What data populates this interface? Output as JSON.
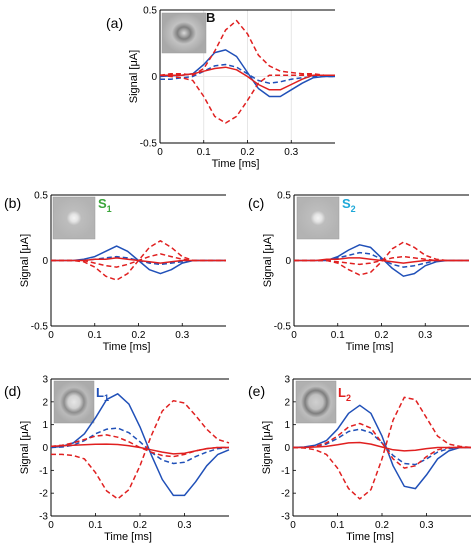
{
  "chart_data": [
    {
      "type": "line",
      "panel_label": "(a)",
      "inset_label": "B",
      "inset_label_color": "#111111",
      "xlabel": "Time [ms]",
      "ylabel": "Signal [μA]",
      "xlim": [
        0,
        0.4
      ],
      "ylim": [
        -0.5,
        0.5
      ],
      "xticks": [
        "0",
        "0.1",
        "0.2",
        "0.3"
      ],
      "yticks": [
        "-0.5",
        "0",
        "0.5"
      ],
      "grid": true,
      "x": [
        0,
        0.025,
        0.05,
        0.075,
        0.1,
        0.125,
        0.15,
        0.175,
        0.2,
        0.225,
        0.25,
        0.275,
        0.3,
        0.325,
        0.35,
        0.375,
        0.4
      ],
      "series": [
        {
          "color": "#2050b8",
          "style": "solid",
          "values": [
            0,
            0.005,
            0.01,
            0.02,
            0.09,
            0.18,
            0.2,
            0.15,
            0.03,
            -0.09,
            -0.15,
            -0.15,
            -0.1,
            -0.05,
            -0.01,
            0,
            0
          ]
        },
        {
          "color": "#2050b8",
          "style": "dashed",
          "values": [
            -0.02,
            -0.02,
            -0.01,
            0,
            0.04,
            0.08,
            0.09,
            0.07,
            0.02,
            -0.03,
            -0.05,
            -0.04,
            -0.02,
            -0.01,
            0,
            0,
            0
          ]
        },
        {
          "color": "#e02020",
          "style": "solid",
          "values": [
            0.01,
            0.01,
            0.01,
            0.02,
            0.04,
            0.06,
            0.07,
            0.05,
            0,
            -0.06,
            -0.1,
            -0.1,
            -0.06,
            -0.02,
            0.01,
            0.01,
            0.01
          ]
        },
        {
          "color": "#e02020",
          "style": "dashed",
          "values": [
            0.01,
            0.02,
            0.02,
            0.01,
            0.06,
            0.19,
            0.35,
            0.42,
            0.32,
            0.16,
            0.08,
            0.04,
            0.03,
            0.02,
            0.02,
            0.01,
            0.01
          ]
        },
        {
          "color": "#e02020",
          "style": "dashed",
          "values": [
            0.01,
            0,
            -0.01,
            -0.03,
            -0.15,
            -0.3,
            -0.35,
            -0.3,
            -0.18,
            -0.05,
            0.01,
            0.01,
            0.01,
            0.01,
            0.01,
            0.01,
            0.01
          ]
        }
      ]
    },
    {
      "type": "line",
      "panel_label": "(b)",
      "inset_label": "S",
      "inset_sub": "1",
      "inset_label_color": "#3aa63a",
      "xlabel": "Time [ms]",
      "ylabel": "Signal [μA]",
      "xlim": [
        0,
        0.4
      ],
      "ylim": [
        -0.5,
        0.5
      ],
      "xticks": [
        "0",
        "0.1",
        "0.2",
        "0.3"
      ],
      "yticks": [
        "-0.5",
        "0",
        "0.5"
      ],
      "grid": false,
      "x": [
        0,
        0.025,
        0.05,
        0.075,
        0.1,
        0.125,
        0.15,
        0.175,
        0.2,
        0.225,
        0.25,
        0.275,
        0.3,
        0.325,
        0.35,
        0.375,
        0.4
      ],
      "series": [
        {
          "color": "#2050b8",
          "style": "solid",
          "values": [
            0,
            0,
            0,
            0.01,
            0.03,
            0.07,
            0.11,
            0.07,
            0,
            -0.07,
            -0.1,
            -0.07,
            -0.02,
            0,
            0,
            0,
            0
          ]
        },
        {
          "color": "#2050b8",
          "style": "dashed",
          "values": [
            0,
            0,
            0,
            0,
            0.01,
            0.02,
            0.03,
            0.02,
            0,
            -0.02,
            -0.03,
            -0.02,
            -0.01,
            0,
            0,
            0,
            0
          ]
        },
        {
          "color": "#e02020",
          "style": "solid",
          "values": [
            0,
            0,
            0,
            0,
            0.01,
            0.01,
            0.02,
            0.01,
            0,
            -0.01,
            -0.02,
            -0.01,
            0,
            0,
            0,
            0,
            0
          ]
        },
        {
          "color": "#e02020",
          "style": "dashed",
          "values": [
            0,
            0,
            0,
            -0.01,
            -0.05,
            -0.12,
            -0.15,
            -0.1,
            0,
            0.1,
            0.15,
            0.1,
            0.03,
            0,
            0,
            0,
            0
          ]
        },
        {
          "color": "#e02020",
          "style": "dashed",
          "values": [
            0,
            0,
            0,
            0,
            -0.02,
            -0.04,
            -0.05,
            -0.03,
            0,
            0.03,
            0.05,
            0.03,
            0.01,
            0,
            0,
            0,
            0
          ]
        }
      ]
    },
    {
      "type": "line",
      "panel_label": "(c)",
      "inset_label": "S",
      "inset_sub": "2",
      "inset_label_color": "#1ea8d8",
      "xlabel": "Time [ms]",
      "ylabel": "Signal [μA]",
      "xlim": [
        0,
        0.4
      ],
      "ylim": [
        -0.5,
        0.5
      ],
      "xticks": [
        "0",
        "0.1",
        "0.2",
        "0.3"
      ],
      "yticks": [
        "-0.5",
        "0",
        "0.5"
      ],
      "grid": false,
      "x": [
        0,
        0.025,
        0.05,
        0.075,
        0.1,
        0.125,
        0.15,
        0.175,
        0.2,
        0.225,
        0.25,
        0.275,
        0.3,
        0.325,
        0.35,
        0.375,
        0.4
      ],
      "series": [
        {
          "color": "#2050b8",
          "style": "solid",
          "values": [
            0,
            0,
            0,
            0,
            0.03,
            0.08,
            0.12,
            0.1,
            0.02,
            -0.06,
            -0.12,
            -0.1,
            -0.04,
            -0.01,
            0,
            0,
            0
          ]
        },
        {
          "color": "#2050b8",
          "style": "dashed",
          "values": [
            0,
            0,
            0,
            0,
            0.02,
            0.04,
            0.06,
            0.05,
            0.01,
            -0.03,
            -0.05,
            -0.04,
            -0.02,
            0,
            0,
            0,
            0
          ]
        },
        {
          "color": "#e02020",
          "style": "solid",
          "values": [
            0,
            0,
            0,
            0.01,
            0.01,
            0.02,
            0.02,
            0.01,
            0,
            -0.01,
            -0.02,
            -0.01,
            0,
            0,
            0,
            0,
            0
          ]
        },
        {
          "color": "#e02020",
          "style": "dashed",
          "values": [
            0,
            0,
            0,
            0,
            -0.02,
            -0.07,
            -0.11,
            -0.09,
            -0.01,
            0.09,
            0.14,
            0.1,
            0.04,
            0.01,
            0,
            0,
            0
          ]
        },
        {
          "color": "#e02020",
          "style": "dashed",
          "values": [
            0,
            0,
            0,
            0,
            -0.01,
            -0.02,
            -0.03,
            -0.02,
            0,
            0.02,
            0.03,
            0.02,
            0.01,
            0,
            0,
            0,
            0
          ]
        }
      ]
    },
    {
      "type": "line",
      "panel_label": "(d)",
      "inset_label": "L",
      "inset_sub": "1",
      "inset_label_color": "#2050b8",
      "xlabel": "Time [ms]",
      "ylabel": "Signal [μA]",
      "xlim": [
        0,
        0.4
      ],
      "ylim": [
        -3,
        3
      ],
      "xticks": [
        "0",
        "0.1",
        "0.2",
        "0.3"
      ],
      "yticks": [
        "-3",
        "-2",
        "-1",
        "0",
        "1",
        "2",
        "3"
      ],
      "grid": false,
      "x": [
        0,
        0.025,
        0.05,
        0.075,
        0.1,
        0.125,
        0.15,
        0.175,
        0.2,
        0.225,
        0.25,
        0.275,
        0.3,
        0.325,
        0.35,
        0.375,
        0.4
      ],
      "series": [
        {
          "color": "#2050b8",
          "style": "solid",
          "values": [
            0,
            0.05,
            0.2,
            0.6,
            1.3,
            2.1,
            2.35,
            1.9,
            0.9,
            -0.3,
            -1.4,
            -2.1,
            -2.1,
            -1.5,
            -0.8,
            -0.3,
            -0.1
          ]
        },
        {
          "color": "#2050b8",
          "style": "dashed",
          "values": [
            0,
            0.02,
            0.1,
            0.3,
            0.6,
            0.8,
            0.85,
            0.65,
            0.25,
            -0.2,
            -0.55,
            -0.7,
            -0.65,
            -0.4,
            -0.2,
            -0.05,
            0
          ]
        },
        {
          "color": "#e02020",
          "style": "solid",
          "values": [
            0.05,
            0.08,
            0.1,
            0.12,
            0.14,
            0.15,
            0.13,
            0.08,
            0,
            -0.1,
            -0.2,
            -0.28,
            -0.25,
            -0.15,
            -0.05,
            0,
            0
          ]
        },
        {
          "color": "#e02020",
          "style": "dashed",
          "values": [
            -0.3,
            -0.3,
            -0.35,
            -0.5,
            -1.1,
            -1.9,
            -2.25,
            -1.85,
            -0.8,
            0.5,
            1.6,
            2.05,
            1.95,
            1.4,
            0.8,
            0.35,
            0.2
          ]
        },
        {
          "color": "#e02020",
          "style": "dashed",
          "values": [
            0.05,
            0.1,
            0.2,
            0.35,
            0.5,
            0.55,
            0.45,
            0.25,
            0,
            -0.2,
            -0.35,
            -0.4,
            -0.3,
            -0.15,
            -0.05,
            0,
            0
          ]
        }
      ]
    },
    {
      "type": "line",
      "panel_label": "(e)",
      "inset_label": "L",
      "inset_sub": "2",
      "inset_label_color": "#e02020",
      "xlabel": "Time [ms]",
      "ylabel": "Signal [μA]",
      "xlim": [
        0,
        0.4
      ],
      "ylim": [
        -3,
        3
      ],
      "xticks": [
        "0",
        "0.1",
        "0.2",
        "0.3"
      ],
      "yticks": [
        "-3",
        "-2",
        "-1",
        "0",
        "1",
        "2",
        "3"
      ],
      "grid": false,
      "x": [
        0,
        0.025,
        0.05,
        0.075,
        0.1,
        0.125,
        0.15,
        0.175,
        0.2,
        0.225,
        0.25,
        0.275,
        0.3,
        0.325,
        0.35,
        0.375,
        0.4
      ],
      "series": [
        {
          "color": "#2050b8",
          "style": "solid",
          "values": [
            0,
            0.02,
            0.1,
            0.3,
            0.8,
            1.5,
            1.85,
            1.5,
            0.5,
            -0.8,
            -1.7,
            -1.8,
            -1.2,
            -0.5,
            -0.15,
            0,
            0
          ]
        },
        {
          "color": "#2050b8",
          "style": "dashed",
          "values": [
            0,
            0,
            0.05,
            0.15,
            0.4,
            0.7,
            0.8,
            0.65,
            0.2,
            -0.35,
            -0.7,
            -0.75,
            -0.5,
            -0.2,
            -0.05,
            0,
            0
          ]
        },
        {
          "color": "#e02020",
          "style": "solid",
          "values": [
            0,
            0,
            0.02,
            0.05,
            0.12,
            0.2,
            0.22,
            0.15,
            0.02,
            -0.1,
            -0.15,
            -0.12,
            -0.05,
            0,
            0,
            0,
            0
          ]
        },
        {
          "color": "#e02020",
          "style": "dashed",
          "values": [
            0,
            -0.02,
            -0.1,
            -0.3,
            -0.9,
            -1.8,
            -2.25,
            -1.85,
            -0.5,
            1.2,
            2.2,
            2.1,
            1.3,
            0.5,
            0.15,
            0.05,
            0
          ]
        },
        {
          "color": "#e02020",
          "style": "dashed",
          "values": [
            0,
            0,
            0.05,
            0.2,
            0.5,
            0.9,
            1.05,
            0.85,
            0.2,
            -0.5,
            -0.9,
            -0.8,
            -0.4,
            -0.1,
            0,
            0,
            0
          ]
        }
      ]
    }
  ]
}
